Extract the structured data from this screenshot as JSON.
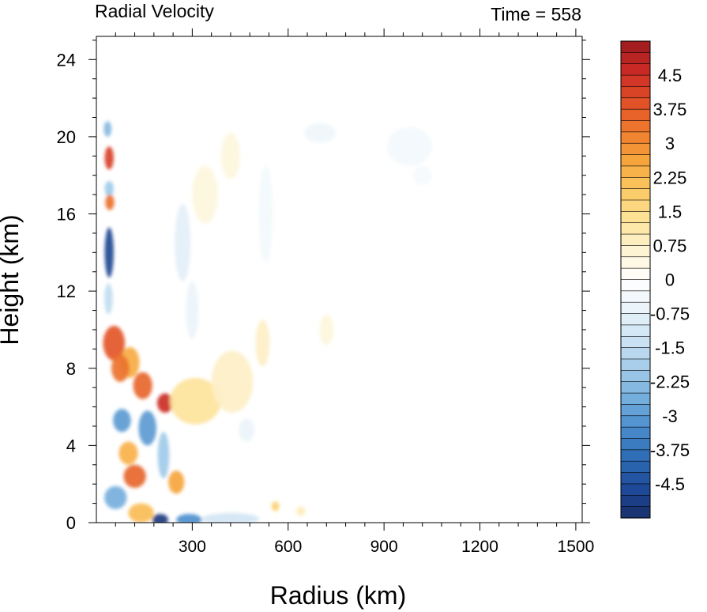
{
  "chart_data": {
    "type": "heatmap",
    "title_left": "Radial Velocity",
    "title_right": "Time = 558",
    "xlabel": "Radius (km)",
    "ylabel": "Height (km)",
    "xlim": [
      0,
      1520
    ],
    "ylim": [
      0,
      25.2
    ],
    "x_ticks": [
      300,
      600,
      900,
      1200,
      1500
    ],
    "x_tick_labels": [
      "300",
      "600",
      "900",
      "1200",
      "1500"
    ],
    "y_ticks": [
      0,
      4,
      8,
      12,
      16,
      20,
      24
    ],
    "y_tick_labels": [
      "0",
      "4",
      "8",
      "12",
      "16",
      "20",
      "24"
    ],
    "colorbar": {
      "min": -5.25,
      "max": 5.25,
      "step": 0.25,
      "label_values": [
        4.5,
        3.75,
        3,
        2.25,
        1.5,
        0.75,
        0,
        -0.75,
        -1.5,
        -2.25,
        -3,
        -3.75,
        -4.5
      ],
      "labels": [
        "4.5",
        "3.75",
        "3",
        "2.25",
        "1.5",
        "0.75",
        "0",
        "-0.75",
        "-1.5",
        "-2.25",
        "-3",
        "-3.75",
        "-4.5"
      ],
      "palette": [
        "#1a2f6b",
        "#1e4a9a",
        "#2d6bb5",
        "#4a8ccc",
        "#74aedc",
        "#a2cbea",
        "#cde3f3",
        "#eaf3fa",
        "#ffffff",
        "#fdf3d2",
        "#fde39a",
        "#fbc962",
        "#f6a43c",
        "#ee7a2e",
        "#e04e27",
        "#cb2a25",
        "#9c1b1d"
      ]
    },
    "features": [
      {
        "r": 40,
        "z": 18.9,
        "sr": 14,
        "sz": 0.6,
        "v": 4.2
      },
      {
        "r": 35,
        "z": 20.4,
        "sr": 12,
        "sz": 0.4,
        "v": -2.4
      },
      {
        "r": 40,
        "z": 17.3,
        "sr": 14,
        "sz": 0.4,
        "v": -2.0
      },
      {
        "r": 42,
        "z": 16.6,
        "sr": 14,
        "sz": 0.4,
        "v": 3.4
      },
      {
        "r": 40,
        "z": 14.0,
        "sr": 14,
        "sz": 1.3,
        "v": -4.7
      },
      {
        "r": 38,
        "z": 11.6,
        "sr": 13,
        "sz": 0.8,
        "v": -1.5
      },
      {
        "r": 55,
        "z": 9.3,
        "sr": 34,
        "sz": 0.9,
        "v": 3.8
      },
      {
        "r": 105,
        "z": 8.3,
        "sr": 30,
        "sz": 0.8,
        "v": 2.5
      },
      {
        "r": 75,
        "z": 8.0,
        "sr": 28,
        "sz": 0.7,
        "v": 3.4
      },
      {
        "r": 145,
        "z": 7.1,
        "sr": 30,
        "sz": 0.7,
        "v": 3.6
      },
      {
        "r": 215,
        "z": 6.2,
        "sr": 25,
        "sz": 0.5,
        "v": 4.6
      },
      {
        "r": 310,
        "z": 6.3,
        "sr": 80,
        "sz": 1.2,
        "v": 1.3
      },
      {
        "r": 425,
        "z": 7.3,
        "sr": 65,
        "sz": 1.6,
        "v": 0.8
      },
      {
        "r": 520,
        "z": 9.3,
        "sr": 22,
        "sz": 1.2,
        "v": 0.8
      },
      {
        "r": 80,
        "z": 5.3,
        "sr": 28,
        "sz": 0.6,
        "v": -3.0
      },
      {
        "r": 160,
        "z": 4.9,
        "sr": 28,
        "sz": 0.9,
        "v": -3.0
      },
      {
        "r": 210,
        "z": 3.5,
        "sr": 18,
        "sz": 1.2,
        "v": -2.0
      },
      {
        "r": 100,
        "z": 3.6,
        "sr": 30,
        "sz": 0.6,
        "v": 2.4
      },
      {
        "r": 120,
        "z": 2.4,
        "sr": 35,
        "sz": 0.6,
        "v": 3.6
      },
      {
        "r": 250,
        "z": 2.1,
        "sr": 25,
        "sz": 0.6,
        "v": 2.6
      },
      {
        "r": 60,
        "z": 1.3,
        "sr": 35,
        "sz": 0.6,
        "v": -2.6
      },
      {
        "r": 140,
        "z": 0.5,
        "sr": 40,
        "sz": 0.5,
        "v": 2.2
      },
      {
        "r": 200,
        "z": 0.15,
        "sr": 25,
        "sz": 0.3,
        "v": -5.0
      },
      {
        "r": 290,
        "z": 0.15,
        "sr": 40,
        "sz": 0.3,
        "v": -3.2
      },
      {
        "r": 420,
        "z": 0.2,
        "sr": 90,
        "sz": 0.3,
        "v": -1.2
      },
      {
        "r": 560,
        "z": 0.85,
        "sr": 12,
        "sz": 0.25,
        "v": 1.8
      },
      {
        "r": 640,
        "z": 0.6,
        "sr": 14,
        "sz": 0.25,
        "v": 0.9
      },
      {
        "r": 270,
        "z": 14.5,
        "sr": 25,
        "sz": 2.0,
        "v": -0.8
      },
      {
        "r": 300,
        "z": 11.0,
        "sr": 20,
        "sz": 1.5,
        "v": -0.6
      },
      {
        "r": 420,
        "z": 19.0,
        "sr": 30,
        "sz": 1.2,
        "v": 0.5
      },
      {
        "r": 340,
        "z": 17.0,
        "sr": 40,
        "sz": 1.5,
        "v": 0.5
      },
      {
        "r": 530,
        "z": 16.0,
        "sr": 22,
        "sz": 2.5,
        "v": -0.4
      },
      {
        "r": 700,
        "z": 20.2,
        "sr": 50,
        "sz": 0.5,
        "v": -0.5
      },
      {
        "r": 980,
        "z": 19.5,
        "sr": 70,
        "sz": 1.0,
        "v": -0.4
      },
      {
        "r": 1020,
        "z": 18.0,
        "sr": 30,
        "sz": 0.5,
        "v": -0.3
      },
      {
        "r": 470,
        "z": 4.8,
        "sr": 25,
        "sz": 0.6,
        "v": -0.6
      },
      {
        "r": 720,
        "z": 10.0,
        "sr": 22,
        "sz": 0.8,
        "v": 0.5
      }
    ]
  }
}
